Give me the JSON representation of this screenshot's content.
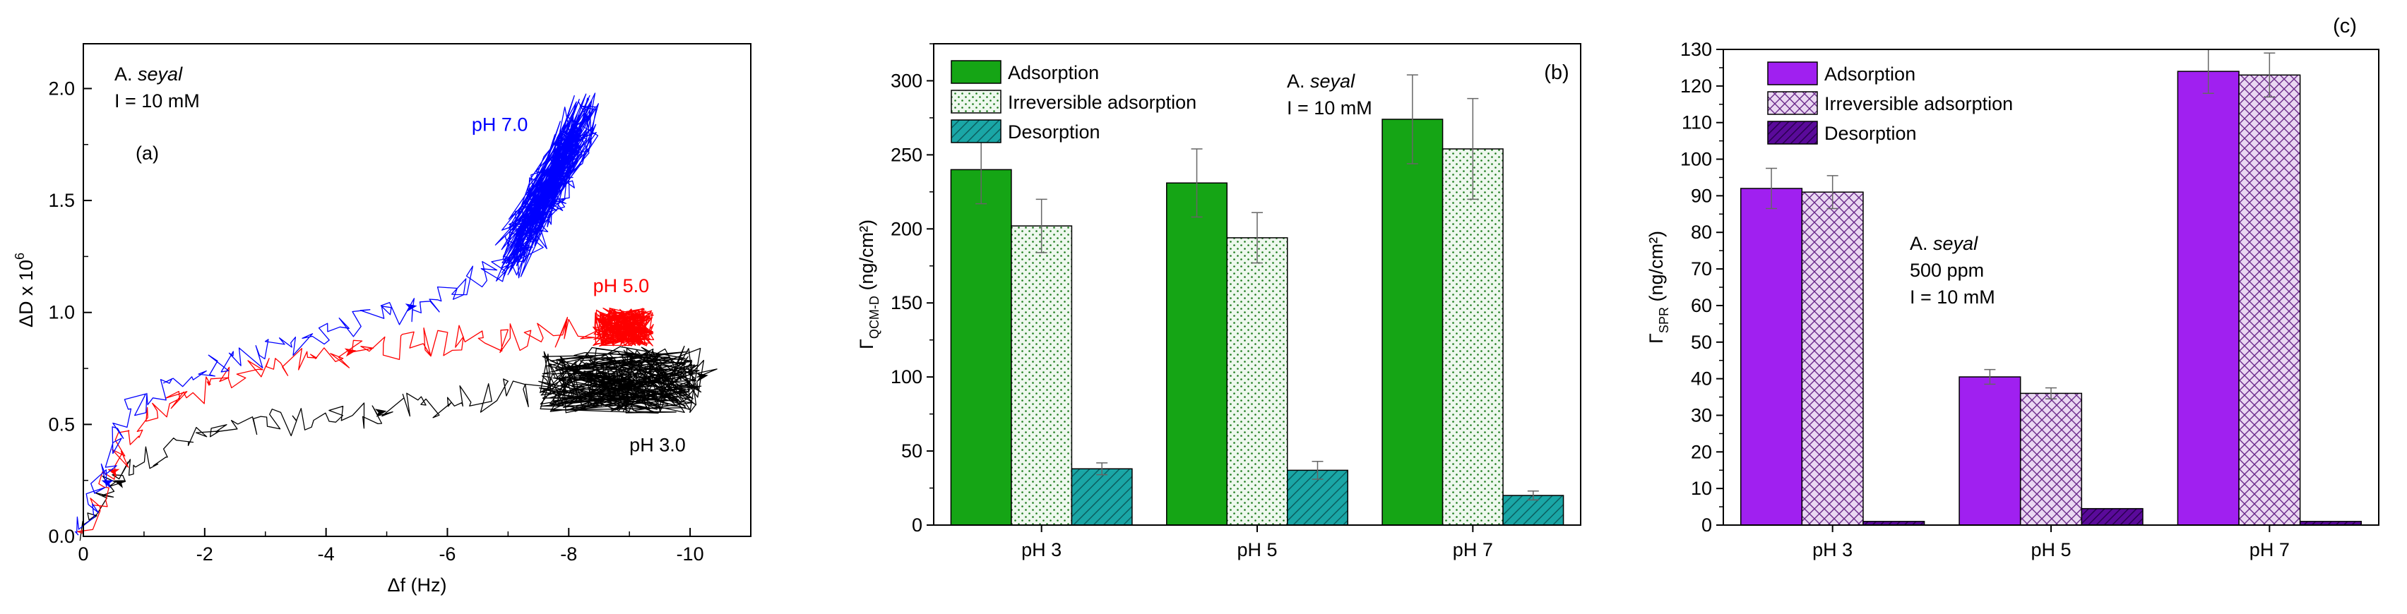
{
  "chart_data": [
    {
      "type": "scatter",
      "panel_label": "(a)",
      "annotation": {
        "species_prefix": "A.",
        "species_italic": "seyal",
        "ionic": "I = 10 mM"
      },
      "xlabel": "Δf (Hz)",
      "ylabel_base": "ΔD x 10",
      "ylabel_exp": "6",
      "xlim": [
        0,
        -11
      ],
      "ylim": [
        0,
        2.2
      ],
      "xticks": [
        0,
        -2,
        -4,
        -6,
        -8,
        -10
      ],
      "xtick_labels": [
        "0",
        "-2",
        "-4",
        "-6",
        "-8",
        "-10"
      ],
      "yticks": [
        0,
        0.5,
        1.0,
        1.5,
        2.0
      ],
      "ytick_labels": [
        "0.0",
        "0.5",
        "1.0",
        "1.5",
        "2.0"
      ],
      "series": [
        {
          "name": "pH 3.0",
          "color": "#000000",
          "path": [
            [
              0,
              0
            ],
            [
              -0.5,
              0.25
            ],
            [
              -1,
              0.35
            ],
            [
              -2,
              0.45
            ],
            [
              -3,
              0.5
            ],
            [
              -4,
              0.53
            ],
            [
              -5,
              0.56
            ],
            [
              -6,
              0.6
            ],
            [
              -7,
              0.63
            ],
            [
              -8,
              0.66
            ],
            [
              -9,
              0.68
            ],
            [
              -10,
              0.7
            ],
            [
              -10.3,
              0.72
            ]
          ],
          "cluster": {
            "x": [
              -7.5,
              -10.2
            ],
            "y": [
              0.55,
              0.85
            ]
          },
          "label_pos": [
            -9.0,
            0.38
          ]
        },
        {
          "name": "pH 5.0",
          "color": "#ff0000",
          "path": [
            [
              0,
              0
            ],
            [
              -0.4,
              0.3
            ],
            [
              -1,
              0.5
            ],
            [
              -1.6,
              0.62
            ],
            [
              -2.5,
              0.72
            ],
            [
              -3.5,
              0.78
            ],
            [
              -4.5,
              0.83
            ],
            [
              -5.5,
              0.86
            ],
            [
              -6.5,
              0.88
            ],
            [
              -7.5,
              0.9
            ],
            [
              -8.5,
              0.93
            ],
            [
              -9.1,
              0.95
            ]
          ],
          "cluster": {
            "x": [
              -8.4,
              -9.4
            ],
            "y": [
              0.85,
              1.02
            ]
          },
          "label_pos": [
            -8.4,
            1.09
          ]
        },
        {
          "name": "pH 7.0",
          "color": "#0000ff",
          "path": [
            [
              0,
              0
            ],
            [
              -0.3,
              0.25
            ],
            [
              -0.7,
              0.55
            ],
            [
              -1.5,
              0.7
            ],
            [
              -2.5,
              0.78
            ],
            [
              -3.5,
              0.86
            ],
            [
              -4.5,
              0.95
            ],
            [
              -5.5,
              1.03
            ],
            [
              -6.3,
              1.12
            ],
            [
              -7,
              1.22
            ],
            [
              -7.5,
              1.35
            ],
            [
              -7.8,
              1.5
            ],
            [
              -8,
              1.65
            ],
            [
              -8.1,
              1.8
            ]
          ],
          "cluster": {
            "x": [
              -7.0,
              -8.3
            ],
            "y": [
              1.2,
              1.9
            ]
          },
          "label_pos": [
            -6.4,
            1.81
          ]
        }
      ]
    },
    {
      "type": "bar",
      "panel_label": "(b)",
      "annotation": {
        "species_prefix": "A.",
        "species_italic": "seyal",
        "ionic": "I = 10 mM"
      },
      "ylabel_main": "Γ",
      "ylabel_sub": "QCM-D",
      "ylabel_unit": " (ng/cm²)",
      "ylim": [
        0,
        325
      ],
      "yticks": [
        0,
        50,
        100,
        150,
        200,
        250,
        300
      ],
      "categories": [
        "pH 3",
        "pH 5",
        "pH 7"
      ],
      "series": [
        {
          "name": "Adsorption",
          "values": [
            240,
            231,
            274
          ],
          "errors": [
            23,
            23,
            30
          ],
          "fill": "#15a515",
          "pattern": "solid"
        },
        {
          "name": "Irreversible adsorption",
          "values": [
            202,
            194,
            254
          ],
          "errors": [
            18,
            17,
            34
          ],
          "fill": "#eef8ee",
          "pattern": "dots"
        },
        {
          "name": "Desorption",
          "values": [
            38,
            37,
            20
          ],
          "errors": [
            4,
            6,
            3
          ],
          "fill": "#1aa6a6",
          "pattern": "hatch"
        }
      ]
    },
    {
      "type": "bar",
      "panel_label": "(c)",
      "annotation": {
        "species_prefix": "A.",
        "species_italic": "seyal",
        "conc": "500 ppm",
        "ionic": "I = 10 mM"
      },
      "ylabel_main": "Γ",
      "ylabel_sub": "SPR",
      "ylabel_unit": " (ng/cm²)",
      "ylim": [
        0,
        130
      ],
      "yticks": [
        0,
        10,
        20,
        30,
        40,
        50,
        60,
        70,
        80,
        90,
        100,
        110,
        120,
        130
      ],
      "categories": [
        "pH 3",
        "pH 5",
        "pH 7"
      ],
      "series": [
        {
          "name": "Adsorption",
          "values": [
            92,
            40.5,
            124
          ],
          "errors": [
            5.5,
            2,
            6
          ],
          "fill": "#a020f0",
          "pattern": "solid"
        },
        {
          "name": "Irreversible adsorption",
          "values": [
            91,
            36,
            123
          ],
          "errors": [
            4.5,
            1.5,
            6
          ],
          "fill": "#ead8f2",
          "pattern": "cross"
        },
        {
          "name": "Desorption",
          "values": [
            1,
            4.5,
            1
          ],
          "errors": [
            0,
            0,
            0
          ],
          "fill": "#5a0a9a",
          "pattern": "dhatch"
        }
      ]
    }
  ]
}
